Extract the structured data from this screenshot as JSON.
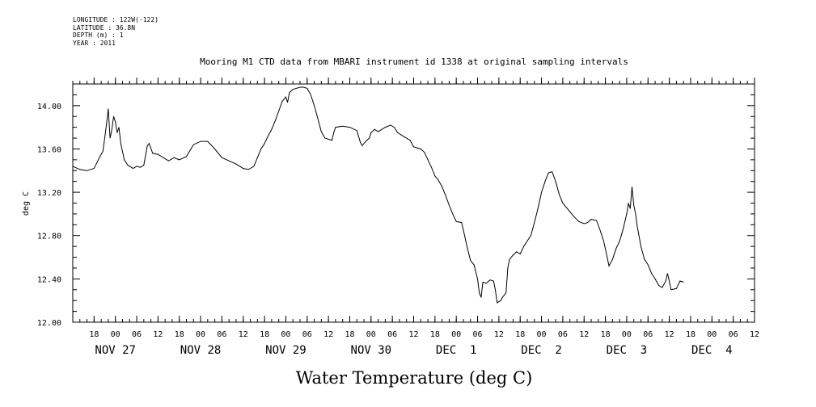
{
  "header": {
    "meta_lines": [
      "LONGITUDE : 122W(-122)",
      "LATITUDE : 36.8N",
      "DEPTH (m) : 1",
      "YEAR : 2011"
    ]
  },
  "chart_data": {
    "type": "line",
    "title": "Mooring M1 CTD data from MBARI instrument id 1338 at original sampling intervals",
    "xlabel": "Water Temperature (deg C)",
    "ylabel": "deg C",
    "xlim": [
      "2011-11-26T12:00",
      "2011-12-04T12:00"
    ],
    "ylim": [
      12.0,
      14.2
    ],
    "y_ticks": [
      "12.00",
      "12.40",
      "12.80",
      "13.20",
      "13.60",
      "14.00"
    ],
    "x_hour_ticks": [
      {
        "t": "2011-11-26T18:00",
        "label": "18"
      },
      {
        "t": "2011-11-27T00:00",
        "label": "00"
      },
      {
        "t": "2011-11-27T06:00",
        "label": "06"
      },
      {
        "t": "2011-11-27T12:00",
        "label": "12"
      },
      {
        "t": "2011-11-27T18:00",
        "label": "18"
      },
      {
        "t": "2011-11-28T00:00",
        "label": "00"
      },
      {
        "t": "2011-11-28T06:00",
        "label": "06"
      },
      {
        "t": "2011-11-28T12:00",
        "label": "12"
      },
      {
        "t": "2011-11-28T18:00",
        "label": "18"
      },
      {
        "t": "2011-11-29T00:00",
        "label": "00"
      },
      {
        "t": "2011-11-29T06:00",
        "label": "06"
      },
      {
        "t": "2011-11-29T12:00",
        "label": "12"
      },
      {
        "t": "2011-11-29T18:00",
        "label": "18"
      },
      {
        "t": "2011-11-30T00:00",
        "label": "00"
      },
      {
        "t": "2011-11-30T06:00",
        "label": "06"
      },
      {
        "t": "2011-11-30T12:00",
        "label": "12"
      },
      {
        "t": "2011-11-30T18:00",
        "label": "18"
      },
      {
        "t": "2011-12-01T00:00",
        "label": "00"
      },
      {
        "t": "2011-12-01T06:00",
        "label": "06"
      },
      {
        "t": "2011-12-01T12:00",
        "label": "12"
      },
      {
        "t": "2011-12-01T18:00",
        "label": "18"
      },
      {
        "t": "2011-12-02T00:00",
        "label": "00"
      },
      {
        "t": "2011-12-02T06:00",
        "label": "06"
      },
      {
        "t": "2011-12-02T12:00",
        "label": "12"
      },
      {
        "t": "2011-12-02T18:00",
        "label": "18"
      },
      {
        "t": "2011-12-03T00:00",
        "label": "00"
      },
      {
        "t": "2011-12-03T06:00",
        "label": "06"
      },
      {
        "t": "2011-12-03T12:00",
        "label": "12"
      },
      {
        "t": "2011-12-03T18:00",
        "label": "18"
      },
      {
        "t": "2011-12-04T00:00",
        "label": "00"
      },
      {
        "t": "2011-12-04T06:00",
        "label": "06"
      },
      {
        "t": "2011-12-04T12:00",
        "label": "12"
      }
    ],
    "x_day_labels": [
      {
        "t": "2011-11-27T00:00",
        "label": "NOV 27"
      },
      {
        "t": "2011-11-28T00:00",
        "label": "NOV 28"
      },
      {
        "t": "2011-11-29T00:00",
        "label": "NOV 29"
      },
      {
        "t": "2011-11-30T00:00",
        "label": "NOV 30"
      },
      {
        "t": "2011-12-01T00:00",
        "label": "DEC  1"
      },
      {
        "t": "2011-12-02T00:00",
        "label": "DEC  2"
      },
      {
        "t": "2011-12-03T00:00",
        "label": "DEC  3"
      },
      {
        "t": "2011-12-04T00:00",
        "label": "DEC  4"
      }
    ],
    "series": [
      {
        "points": [
          [
            "2011-11-26T12:00",
            13.44
          ],
          [
            "2011-11-26T14:00",
            13.41
          ],
          [
            "2011-11-26T16:00",
            13.4
          ],
          [
            "2011-11-26T18:00",
            13.42
          ],
          [
            "2011-11-26T19:30",
            13.52
          ],
          [
            "2011-11-26T20:30",
            13.58
          ],
          [
            "2011-11-26T21:00",
            13.7
          ],
          [
            "2011-11-26T21:30",
            13.83
          ],
          [
            "2011-11-26T22:00",
            13.97
          ],
          [
            "2011-11-26T22:30",
            13.7
          ],
          [
            "2011-11-26T23:00",
            13.78
          ],
          [
            "2011-11-26T23:30",
            13.9
          ],
          [
            "2011-11-27T00:00",
            13.85
          ],
          [
            "2011-11-27T00:30",
            13.75
          ],
          [
            "2011-11-27T01:00",
            13.8
          ],
          [
            "2011-11-27T01:30",
            13.65
          ],
          [
            "2011-11-27T02:30",
            13.5
          ],
          [
            "2011-11-27T03:30",
            13.45
          ],
          [
            "2011-11-27T05:00",
            13.42
          ],
          [
            "2011-11-27T06:00",
            13.44
          ],
          [
            "2011-11-27T07:00",
            13.43
          ],
          [
            "2011-11-27T08:00",
            13.45
          ],
          [
            "2011-11-27T09:00",
            13.63
          ],
          [
            "2011-11-27T09:30",
            13.65
          ],
          [
            "2011-11-27T10:30",
            13.56
          ],
          [
            "2011-11-27T12:00",
            13.55
          ],
          [
            "2011-11-27T13:30",
            13.52
          ],
          [
            "2011-11-27T15:00",
            13.49
          ],
          [
            "2011-11-27T16:30",
            13.52
          ],
          [
            "2011-11-27T18:00",
            13.5
          ],
          [
            "2011-11-27T20:00",
            13.53
          ],
          [
            "2011-11-27T22:00",
            13.64
          ],
          [
            "2011-11-28T00:00",
            13.67
          ],
          [
            "2011-11-28T02:00",
            13.67
          ],
          [
            "2011-11-28T04:00",
            13.6
          ],
          [
            "2011-11-28T06:00",
            13.52
          ],
          [
            "2011-11-28T08:00",
            13.49
          ],
          [
            "2011-11-28T10:00",
            13.46
          ],
          [
            "2011-11-28T12:00",
            13.42
          ],
          [
            "2011-11-28T13:30",
            13.41
          ],
          [
            "2011-11-28T15:00",
            13.44
          ],
          [
            "2011-11-28T16:00",
            13.52
          ],
          [
            "2011-11-28T17:00",
            13.6
          ],
          [
            "2011-11-28T18:00",
            13.65
          ],
          [
            "2011-11-28T19:00",
            13.72
          ],
          [
            "2011-11-28T20:00",
            13.78
          ],
          [
            "2011-11-28T21:00",
            13.86
          ],
          [
            "2011-11-28T22:00",
            13.95
          ],
          [
            "2011-11-28T23:00",
            14.04
          ],
          [
            "2011-11-29T00:00",
            14.08
          ],
          [
            "2011-11-29T00:30",
            14.03
          ],
          [
            "2011-11-29T01:00",
            14.12
          ],
          [
            "2011-11-29T02:00",
            14.15
          ],
          [
            "2011-11-29T04:00",
            14.17
          ],
          [
            "2011-11-29T05:00",
            14.17
          ],
          [
            "2011-11-29T06:00",
            14.16
          ],
          [
            "2011-11-29T07:00",
            14.1
          ],
          [
            "2011-11-29T08:00",
            14.0
          ],
          [
            "2011-11-29T09:00",
            13.88
          ],
          [
            "2011-11-29T10:00",
            13.76
          ],
          [
            "2011-11-29T11:00",
            13.7
          ],
          [
            "2011-11-29T13:00",
            13.68
          ],
          [
            "2011-11-29T13:30",
            13.75
          ],
          [
            "2011-11-29T14:00",
            13.8
          ],
          [
            "2011-11-29T16:00",
            13.81
          ],
          [
            "2011-11-29T18:00",
            13.8
          ],
          [
            "2011-11-29T20:00",
            13.77
          ],
          [
            "2011-11-29T21:00",
            13.66
          ],
          [
            "2011-11-29T21:30",
            13.63
          ],
          [
            "2011-11-29T22:30",
            13.67
          ],
          [
            "2011-11-29T23:30",
            13.7
          ],
          [
            "2011-11-30T00:00",
            13.75
          ],
          [
            "2011-11-30T01:00",
            13.78
          ],
          [
            "2011-11-30T02:00",
            13.76
          ],
          [
            "2011-11-30T04:00",
            13.8
          ],
          [
            "2011-11-30T05:30",
            13.82
          ],
          [
            "2011-11-30T06:30",
            13.8
          ],
          [
            "2011-11-30T07:30",
            13.75
          ],
          [
            "2011-11-30T09:00",
            13.72
          ],
          [
            "2011-11-30T11:00",
            13.68
          ],
          [
            "2011-11-30T12:00",
            13.62
          ],
          [
            "2011-11-30T14:00",
            13.6
          ],
          [
            "2011-11-30T15:00",
            13.57
          ],
          [
            "2011-11-30T16:00",
            13.5
          ],
          [
            "2011-11-30T17:00",
            13.43
          ],
          [
            "2011-11-30T18:00",
            13.35
          ],
          [
            "2011-11-30T19:00",
            13.31
          ],
          [
            "2011-11-30T20:00",
            13.25
          ],
          [
            "2011-11-30T21:00",
            13.17
          ],
          [
            "2011-11-30T22:00",
            13.08
          ],
          [
            "2011-11-30T23:00",
            13.0
          ],
          [
            "2011-12-01T00:00",
            12.93
          ],
          [
            "2011-12-01T01:30",
            12.92
          ],
          [
            "2011-12-01T02:00",
            12.85
          ],
          [
            "2011-12-01T03:00",
            12.7
          ],
          [
            "2011-12-01T04:00",
            12.57
          ],
          [
            "2011-12-01T05:00",
            12.53
          ],
          [
            "2011-12-01T06:00",
            12.4
          ],
          [
            "2011-12-01T06:30",
            12.27
          ],
          [
            "2011-12-01T07:00",
            12.23
          ],
          [
            "2011-12-01T07:30",
            12.37
          ],
          [
            "2011-12-01T08:30",
            12.36
          ],
          [
            "2011-12-01T09:30",
            12.39
          ],
          [
            "2011-12-01T10:30",
            12.38
          ],
          [
            "2011-12-01T11:00",
            12.3
          ],
          [
            "2011-12-01T11:30",
            12.18
          ],
          [
            "2011-12-01T12:30",
            12.2
          ],
          [
            "2011-12-01T13:00",
            12.23
          ],
          [
            "2011-12-01T14:00",
            12.27
          ],
          [
            "2011-12-01T14:30",
            12.5
          ],
          [
            "2011-12-01T15:00",
            12.58
          ],
          [
            "2011-12-01T16:00",
            12.62
          ],
          [
            "2011-12-01T17:00",
            12.65
          ],
          [
            "2011-12-01T18:00",
            12.63
          ],
          [
            "2011-12-01T19:00",
            12.7
          ],
          [
            "2011-12-01T20:00",
            12.75
          ],
          [
            "2011-12-01T21:00",
            12.8
          ],
          [
            "2011-12-01T22:00",
            12.92
          ],
          [
            "2011-12-01T23:00",
            13.05
          ],
          [
            "2011-12-02T00:00",
            13.2
          ],
          [
            "2011-12-02T01:00",
            13.3
          ],
          [
            "2011-12-02T02:00",
            13.38
          ],
          [
            "2011-12-02T03:00",
            13.39
          ],
          [
            "2011-12-02T04:00",
            13.3
          ],
          [
            "2011-12-02T05:00",
            13.18
          ],
          [
            "2011-12-02T06:00",
            13.1
          ],
          [
            "2011-12-02T07:00",
            13.06
          ],
          [
            "2011-12-02T08:00",
            13.02
          ],
          [
            "2011-12-02T09:00",
            12.98
          ],
          [
            "2011-12-02T10:30",
            12.93
          ],
          [
            "2011-12-02T12:00",
            12.91
          ],
          [
            "2011-12-02T13:00",
            12.92
          ],
          [
            "2011-12-02T14:00",
            12.95
          ],
          [
            "2011-12-02T15:30",
            12.94
          ],
          [
            "2011-12-02T16:30",
            12.85
          ],
          [
            "2011-12-02T17:30",
            12.75
          ],
          [
            "2011-12-02T18:30",
            12.6
          ],
          [
            "2011-12-02T19:00",
            12.52
          ],
          [
            "2011-12-02T20:00",
            12.58
          ],
          [
            "2011-12-02T21:00",
            12.68
          ],
          [
            "2011-12-02T22:00",
            12.75
          ],
          [
            "2011-12-02T23:00",
            12.86
          ],
          [
            "2011-12-03T00:00",
            13.0
          ],
          [
            "2011-12-03T00:30",
            13.1
          ],
          [
            "2011-12-03T01:00",
            13.05
          ],
          [
            "2011-12-03T01:30",
            13.25
          ],
          [
            "2011-12-03T02:00",
            13.08
          ],
          [
            "2011-12-03T02:30",
            13.0
          ],
          [
            "2011-12-03T03:00",
            12.88
          ],
          [
            "2011-12-03T04:00",
            12.7
          ],
          [
            "2011-12-03T05:00",
            12.58
          ],
          [
            "2011-12-03T06:00",
            12.53
          ],
          [
            "2011-12-03T07:00",
            12.45
          ],
          [
            "2011-12-03T08:00",
            12.4
          ],
          [
            "2011-12-03T09:00",
            12.34
          ],
          [
            "2011-12-03T10:00",
            12.32
          ],
          [
            "2011-12-03T11:00",
            12.38
          ],
          [
            "2011-12-03T11:30",
            12.45
          ],
          [
            "2011-12-03T12:00",
            12.38
          ],
          [
            "2011-12-03T12:30",
            12.3
          ],
          [
            "2011-12-03T14:00",
            12.31
          ],
          [
            "2011-12-03T15:00",
            12.38
          ],
          [
            "2011-12-03T16:00",
            12.37
          ]
        ]
      }
    ]
  }
}
